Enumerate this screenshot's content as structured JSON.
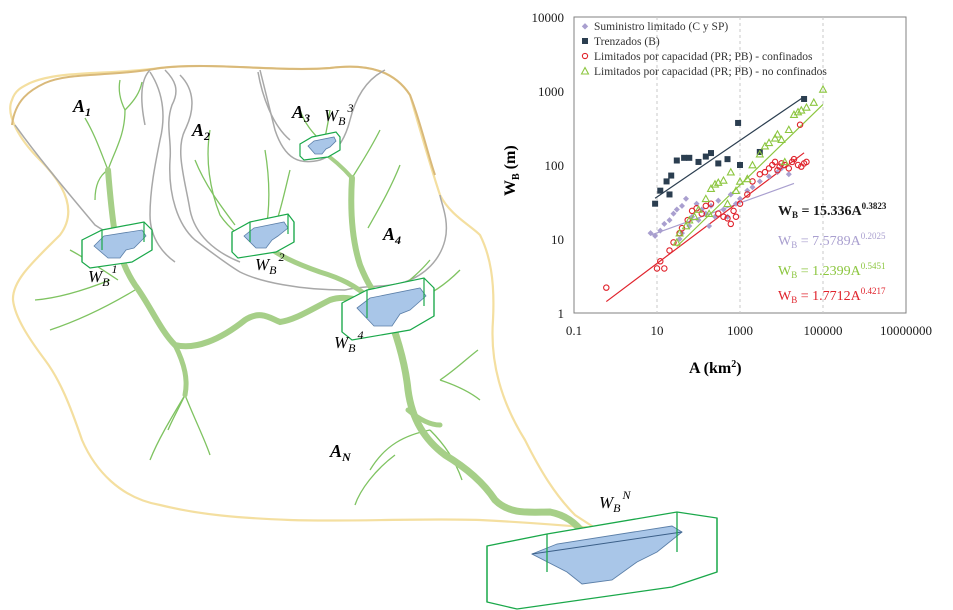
{
  "diagram": {
    "subbasins": [
      {
        "letter": "A",
        "sub": "1"
      },
      {
        "letter": "A",
        "sub": "2"
      },
      {
        "letter": "A",
        "sub": "3"
      },
      {
        "letter": "A",
        "sub": "4"
      },
      {
        "letter": "A",
        "sub": "N"
      }
    ],
    "sections": [
      {
        "letter": "W",
        "sub": "B",
        "sup": "1"
      },
      {
        "letter": "W",
        "sub": "B",
        "sup": "2"
      },
      {
        "letter": "W",
        "sub": "B",
        "sup": "3"
      },
      {
        "letter": "W",
        "sub": "B",
        "sup": "4"
      },
      {
        "letter": "W",
        "sub": "B",
        "sup": "N"
      }
    ],
    "colors": {
      "basin_outline": "#f4dfa0",
      "subbasin_outline": "#a8a8a8",
      "river": "#a6cf88",
      "tributary": "#7fc361",
      "section_box": "#1aa84a",
      "water": "#a9c6e8"
    }
  },
  "chart_data": {
    "type": "scatter",
    "xscale": "log",
    "yscale": "log",
    "xlabel": "A (km",
    "xlabel_sup": "2",
    "xlabel_end": ")",
    "ylabel": "W",
    "ylabel_sub": "B",
    "ylabel_end": " (m)",
    "xlim": [
      0.1,
      10000000
    ],
    "ylim": [
      1,
      10000
    ],
    "xticks": [
      "0.1",
      "10",
      "1000",
      "100000",
      "10000000"
    ],
    "yticks": [
      "1",
      "10",
      "100",
      "1000",
      "10000"
    ],
    "xtick_values": [
      0.1,
      10,
      1000,
      100000,
      10000000
    ],
    "ytick_values": [
      1,
      10,
      100,
      1000,
      10000
    ],
    "grid": "vertical-dashed",
    "legend_position": "top-left",
    "series": [
      {
        "name": "Suministro limitado (C y SP)",
        "marker": "diamond",
        "color": "#a99fcf",
        "points": [
          [
            7,
            12
          ],
          [
            9,
            11
          ],
          [
            12,
            13
          ],
          [
            15,
            16
          ],
          [
            20,
            18
          ],
          [
            25,
            22
          ],
          [
            30,
            25
          ],
          [
            40,
            28
          ],
          [
            50,
            35
          ],
          [
            70,
            20
          ],
          [
            90,
            30
          ],
          [
            120,
            25
          ],
          [
            150,
            22
          ],
          [
            200,
            28
          ],
          [
            300,
            33
          ],
          [
            400,
            25
          ],
          [
            600,
            40
          ],
          [
            800,
            30
          ],
          [
            1000,
            35
          ],
          [
            1500,
            45
          ],
          [
            2000,
            50
          ],
          [
            3000,
            60
          ],
          [
            5000,
            70
          ],
          [
            8000,
            80
          ],
          [
            10000,
            90
          ],
          [
            15000,
            75
          ],
          [
            40,
            12
          ],
          [
            60,
            15
          ],
          [
            100,
            18
          ],
          [
            180,
            15
          ],
          [
            250,
            20
          ],
          [
            35,
            10
          ],
          [
            500,
            20
          ]
        ],
        "fit": {
          "a": 7.5789,
          "b": 0.2025,
          "x": [
            7,
            20000
          ]
        }
      },
      {
        "name": "Trenzados (B)",
        "marker": "square",
        "color": "#2b3e50",
        "points": [
          [
            9,
            30
          ],
          [
            12,
            45
          ],
          [
            17,
            60
          ],
          [
            22,
            72
          ],
          [
            30,
            115
          ],
          [
            45,
            125
          ],
          [
            60,
            125
          ],
          [
            100,
            110
          ],
          [
            150,
            130
          ],
          [
            200,
            145
          ],
          [
            300,
            105
          ],
          [
            500,
            120
          ],
          [
            900,
            370
          ],
          [
            1000,
            100
          ],
          [
            3000,
            150
          ],
          [
            35000,
            780
          ],
          [
            20,
            40
          ]
        ],
        "fit": {
          "a": 15.336,
          "b": 0.3823,
          "x": [
            9,
            35000
          ]
        }
      },
      {
        "name": "Limitados por capacidad (PR; PB) - confinados",
        "marker": "circle",
        "color": "#e0232c",
        "points": [
          [
            0.6,
            2.2
          ],
          [
            10,
            4
          ],
          [
            12,
            5
          ],
          [
            15,
            4
          ],
          [
            20,
            7
          ],
          [
            25,
            9
          ],
          [
            35,
            12
          ],
          [
            40,
            14
          ],
          [
            55,
            18
          ],
          [
            70,
            24
          ],
          [
            90,
            26
          ],
          [
            120,
            22
          ],
          [
            150,
            28
          ],
          [
            200,
            30
          ],
          [
            300,
            22
          ],
          [
            400,
            20
          ],
          [
            500,
            19
          ],
          [
            600,
            16
          ],
          [
            700,
            24
          ],
          [
            800,
            20
          ],
          [
            1000,
            30
          ],
          [
            1500,
            40
          ],
          [
            2000,
            60
          ],
          [
            3000,
            75
          ],
          [
            4000,
            80
          ],
          [
            5000,
            90
          ],
          [
            6000,
            100
          ],
          [
            7000,
            110
          ],
          [
            8000,
            85
          ],
          [
            9000,
            95
          ],
          [
            10000,
            105
          ],
          [
            12000,
            100
          ],
          [
            15000,
            90
          ],
          [
            18000,
            110
          ],
          [
            20000,
            120
          ],
          [
            25000,
            100
          ],
          [
            30000,
            95
          ],
          [
            35000,
            105
          ],
          [
            40000,
            110
          ],
          [
            28000,
            350
          ]
        ],
        "fit": {
          "a": 1.7712,
          "b": 0.4217,
          "x": [
            0.6,
            35000
          ]
        }
      },
      {
        "name": "Limitados por capacidad (PR; PB) - no confinados",
        "marker": "triangle",
        "color": "#8cc63f",
        "points": [
          [
            30,
            9
          ],
          [
            35,
            12
          ],
          [
            50,
            15
          ],
          [
            60,
            18
          ],
          [
            80,
            20
          ],
          [
            100,
            25
          ],
          [
            150,
            35
          ],
          [
            200,
            48
          ],
          [
            250,
            55
          ],
          [
            300,
            58
          ],
          [
            400,
            62
          ],
          [
            600,
            80
          ],
          [
            800,
            45
          ],
          [
            1000,
            60
          ],
          [
            1500,
            65
          ],
          [
            2000,
            100
          ],
          [
            3000,
            140
          ],
          [
            4000,
            180
          ],
          [
            5000,
            200
          ],
          [
            7000,
            230
          ],
          [
            8000,
            260
          ],
          [
            10000,
            220
          ],
          [
            12000,
            110
          ],
          [
            15000,
            300
          ],
          [
            20000,
            480
          ],
          [
            25000,
            520
          ],
          [
            30000,
            550
          ],
          [
            40000,
            600
          ],
          [
            60000,
            700
          ],
          [
            100000,
            1050
          ],
          [
            500,
            30
          ],
          [
            180,
            22
          ]
        ],
        "fit": {
          "a": 1.2399,
          "b": 0.5451,
          "x": [
            30,
            100000
          ]
        }
      }
    ],
    "equations": [
      {
        "lhs": "W",
        "sub": "B",
        "rhs": " = 15.336A",
        "exp": "0.3823",
        "color": "#1b1b1b",
        "bold": true
      },
      {
        "lhs": "W",
        "sub": "B",
        "rhs": " = 7.5789A",
        "exp": "0.2025",
        "color": "#a99fcf",
        "bold": false
      },
      {
        "lhs": "W",
        "sub": "B",
        "rhs": " = 1.2399A",
        "exp": "0.5451",
        "color": "#8cc63f",
        "bold": false
      },
      {
        "lhs": "W",
        "sub": "B",
        "rhs": " = 1.7712A",
        "exp": "0.4217",
        "color": "#e0232c",
        "bold": false
      }
    ]
  }
}
